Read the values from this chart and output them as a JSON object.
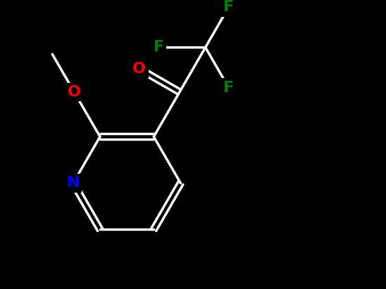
{
  "background_color": "#000000",
  "bond_color": "#ffffff",
  "atom_colors": {
    "N": "#0000ff",
    "O": "#ff0000",
    "F": "#008000",
    "C": "#ffffff"
  },
  "figsize": [
    5.48,
    4.11
  ],
  "dpi": 100,
  "bond_lw": 2.5,
  "font_size": 16
}
